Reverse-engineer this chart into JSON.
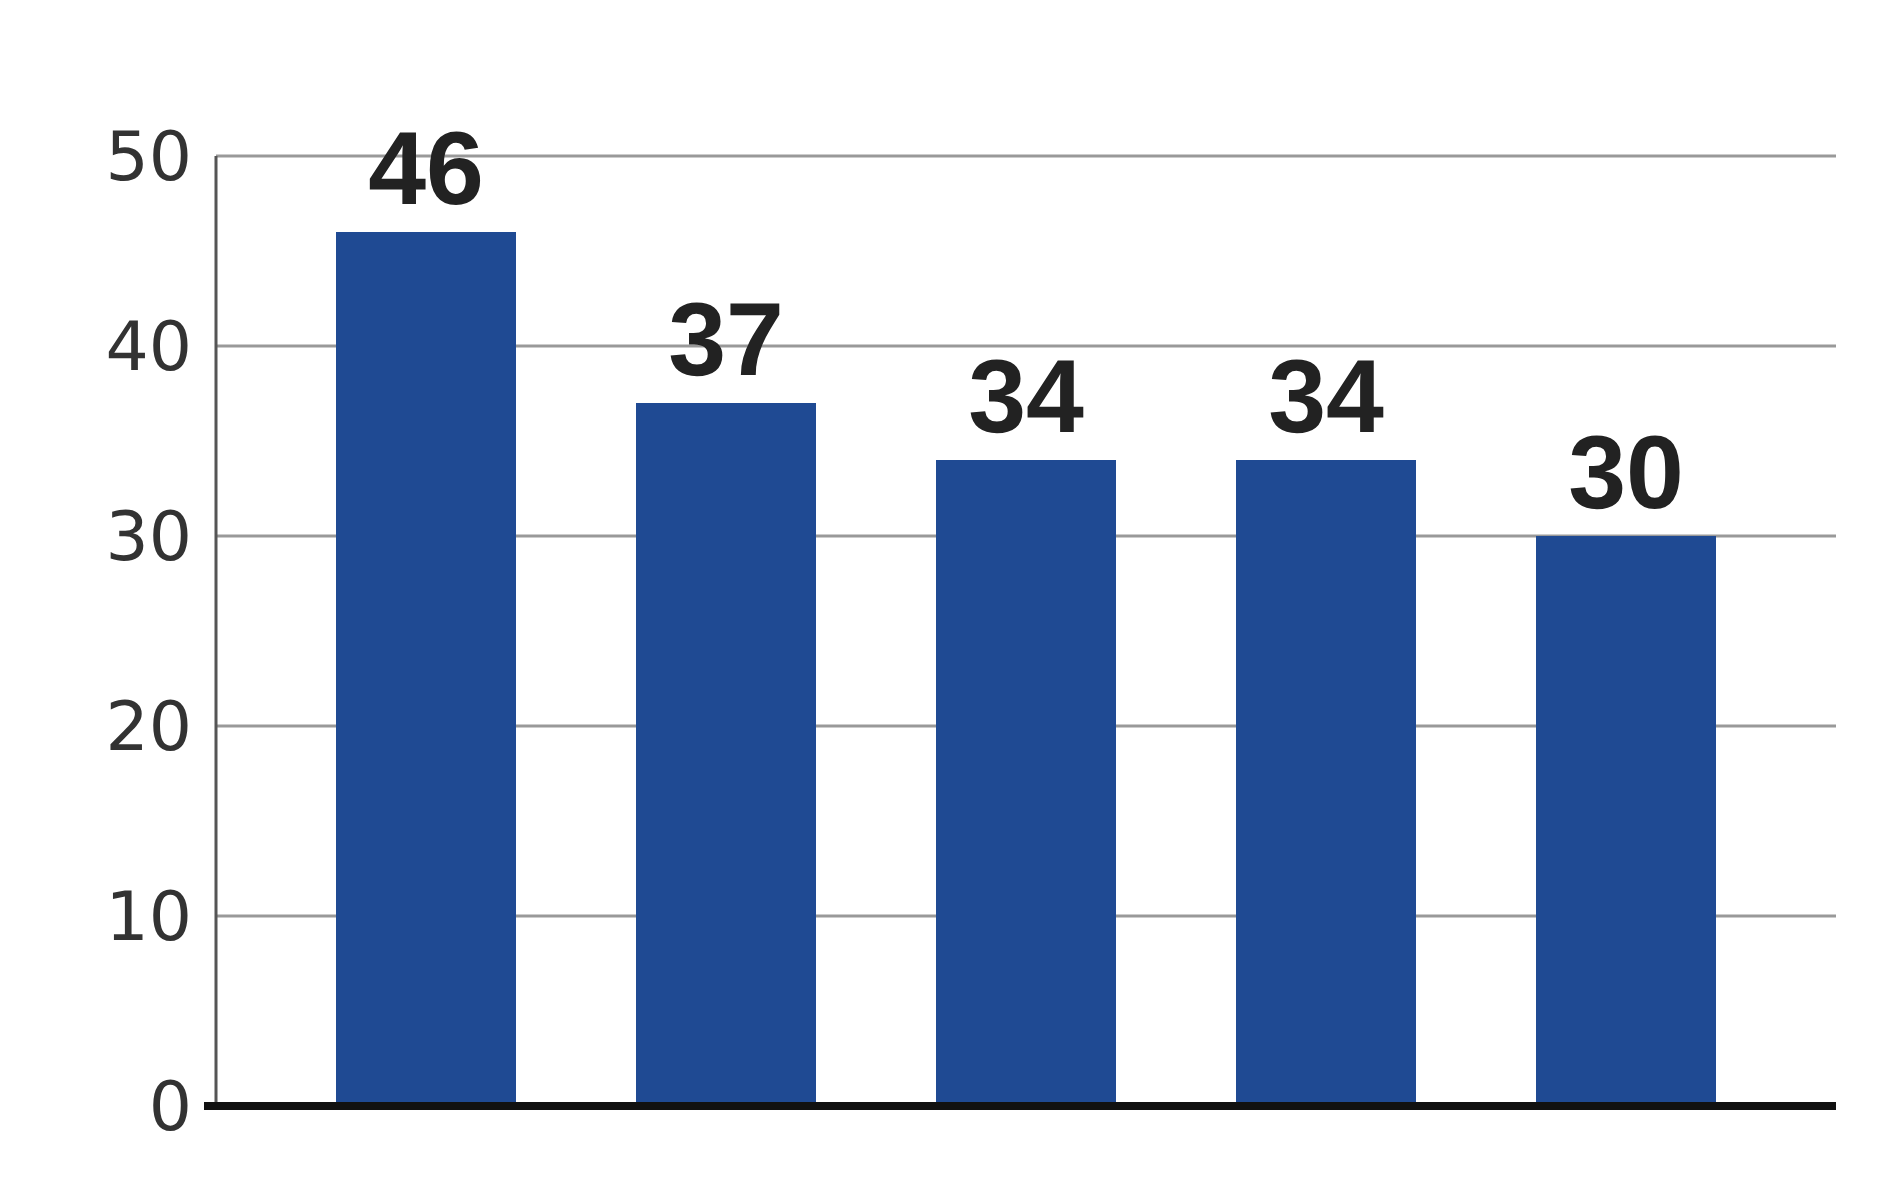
{
  "chart_data": {
    "type": "bar",
    "categories": [
      null,
      null,
      null,
      null,
      null
    ],
    "values": [
      46,
      37,
      34,
      34,
      30
    ],
    "color": "#1f4a93",
    "ylim": [
      0,
      50
    ],
    "yticks": [
      0,
      10,
      20,
      30,
      40,
      50
    ],
    "grid": "y",
    "data_labels": true
  }
}
